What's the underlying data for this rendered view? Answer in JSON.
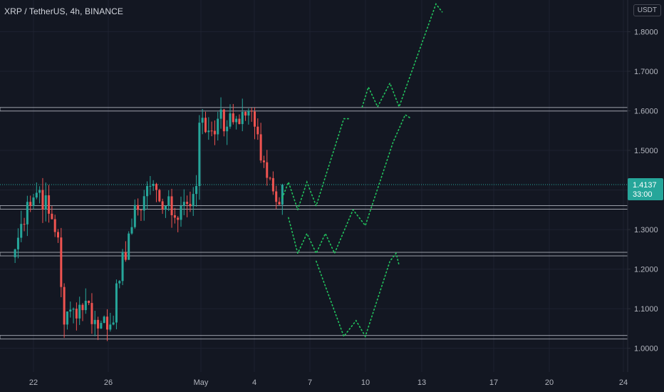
{
  "header": {
    "symbol_title": "XRP / TetherUS, 4h, BINANCE",
    "currency": "USDT"
  },
  "colors": {
    "background": "#131722",
    "up": "#26a69a",
    "down": "#ef5350",
    "grid": "#1e2230",
    "axis_text": "#b2b5be",
    "level_line": "#b2b5be",
    "projection": "#22c55e",
    "price_label_bg": "#26a69a"
  },
  "chart_data": {
    "type": "candlestick",
    "title": "XRP / TetherUS, 4h, BINANCE",
    "x_axis": {
      "type": "date",
      "tick_labels": [
        "22",
        "26",
        "May",
        "4",
        "7",
        "10",
        "13",
        "17",
        "20",
        "24"
      ],
      "range": [
        "2021-04-21",
        "2021-05-24"
      ]
    },
    "y_axis": {
      "range": [
        0.94,
        1.88
      ],
      "tick_labels": [
        "1.8000",
        "1.7000",
        "1.6000",
        "1.5000",
        "1.4000",
        "1.3000",
        "1.2000",
        "1.1000",
        "1.0000"
      ],
      "ticks": [
        1.8,
        1.7,
        1.6,
        1.5,
        1.4,
        1.3,
        1.2,
        1.1,
        1.0
      ],
      "position": "right"
    },
    "current_price": {
      "label": "1.4137",
      "value": 1.4137,
      "countdown": "33:00"
    },
    "levels": [
      1.604,
      1.356,
      1.238,
      1.028
    ],
    "candles_close_anchors": [
      [
        "2021-04-21 00:00",
        1.25
      ],
      [
        "2021-04-21 16:00",
        1.37
      ],
      [
        "2021-04-22 08:00",
        1.4
      ],
      [
        "2021-04-22 20:00",
        1.34
      ],
      [
        "2021-04-23 08:00",
        1.28
      ],
      [
        "2021-04-23 16:00",
        1.06
      ],
      [
        "2021-04-24 04:00",
        1.1
      ],
      [
        "2021-04-24 20:00",
        1.12
      ],
      [
        "2021-04-25 12:00",
        1.05
      ],
      [
        "2021-04-25 20:00",
        1.08
      ],
      [
        "2021-04-26 04:00",
        1.06
      ],
      [
        "2021-04-26 16:00",
        1.17
      ],
      [
        "2021-04-27 04:00",
        1.29
      ],
      [
        "2021-04-27 16:00",
        1.35
      ],
      [
        "2021-04-28 04:00",
        1.41
      ],
      [
        "2021-04-28 16:00",
        1.4
      ],
      [
        "2021-04-29 04:00",
        1.36
      ],
      [
        "2021-04-29 16:00",
        1.33
      ],
      [
        "2021-04-30 04:00",
        1.37
      ],
      [
        "2021-04-30 16:00",
        1.39
      ],
      [
        "2021-04-30 20:00",
        1.41
      ],
      [
        "2021-05-01 00:00",
        1.57
      ],
      [
        "2021-05-01 12:00",
        1.55
      ],
      [
        "2021-05-02 00:00",
        1.58
      ],
      [
        "2021-05-02 12:00",
        1.56
      ],
      [
        "2021-05-03 00:00",
        1.58
      ],
      [
        "2021-05-03 16:00",
        1.6
      ],
      [
        "2021-05-04 00:00",
        1.56
      ],
      [
        "2021-05-04 12:00",
        1.47
      ],
      [
        "2021-05-04 20:00",
        1.43
      ],
      [
        "2021-05-05 04:00",
        1.37
      ],
      [
        "2021-05-05 12:00",
        1.4137
      ]
    ],
    "projections": [
      {
        "name": "",
        "points": [
          [
            "2021-05-05 12:00",
            1.38
          ],
          [
            "2021-05-05 20:00",
            1.42
          ],
          [
            "2021-05-06 08:00",
            1.35
          ],
          [
            "2021-05-06 20:00",
            1.42
          ],
          [
            "2021-05-07 08:00",
            1.36
          ],
          [
            "2021-05-08 20:00",
            1.58
          ],
          [
            "2021-05-09 04:00",
            1.58
          ]
        ]
      },
      {
        "name": "",
        "points": [
          [
            "2021-05-05 20:00",
            1.33
          ],
          [
            "2021-05-06 08:00",
            1.24
          ],
          [
            "2021-05-06 20:00",
            1.29
          ],
          [
            "2021-05-07 08:00",
            1.24
          ],
          [
            "2021-05-07 20:00",
            1.29
          ],
          [
            "2021-05-08 08:00",
            1.24
          ],
          [
            "2021-05-09 08:00",
            1.35
          ],
          [
            "2021-05-10 00:00",
            1.31
          ],
          [
            "2021-05-11 12:00",
            1.52
          ],
          [
            "2021-05-12 04:00",
            1.59
          ],
          [
            "2021-05-12 12:00",
            1.58
          ]
        ]
      },
      {
        "name": "",
        "points": [
          [
            "2021-05-07 08:00",
            1.22
          ],
          [
            "2021-05-08 20:00",
            1.03
          ],
          [
            "2021-05-09 12:00",
            1.07
          ],
          [
            "2021-05-10 00:00",
            1.03
          ],
          [
            "2021-05-11 08:00",
            1.22
          ],
          [
            "2021-05-11 16:00",
            1.24
          ],
          [
            "2021-05-11 20:00",
            1.21
          ]
        ]
      },
      {
        "name": "",
        "points": [
          [
            "2021-05-09 20:00",
            1.61
          ],
          [
            "2021-05-10 04:00",
            1.66
          ],
          [
            "2021-05-10 16:00",
            1.61
          ],
          [
            "2021-05-11 08:00",
            1.67
          ],
          [
            "2021-05-11 20:00",
            1.61
          ],
          [
            "2021-05-13 20:00",
            1.87
          ],
          [
            "2021-05-14 04:00",
            1.85
          ]
        ]
      }
    ]
  }
}
